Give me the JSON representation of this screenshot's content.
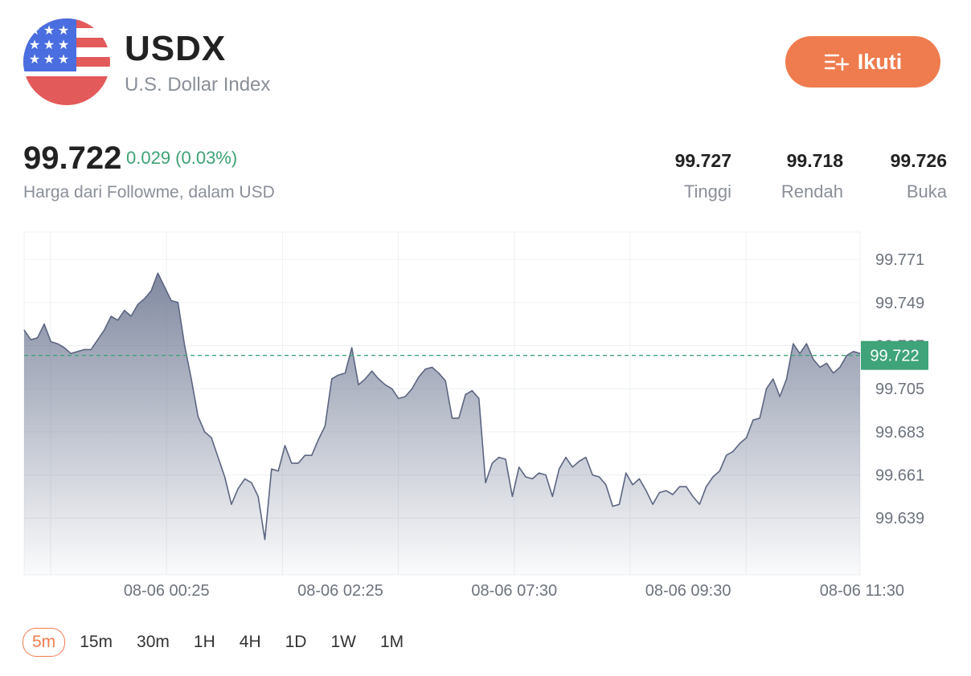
{
  "header": {
    "symbol": "USDX",
    "name": "U.S. Dollar Index",
    "follow_label": "Ikuti",
    "flag_icon": "us-flag-icon",
    "follow_icon": "add-to-list-icon"
  },
  "quote": {
    "price": "99.722",
    "change": "0.029 (0.03%)",
    "note": "Harga dari Followme, dalam USD",
    "high_value": "99.727",
    "high_label": "Tinggi",
    "low_value": "99.718",
    "low_label": "Rendah",
    "open_value": "99.726",
    "open_label": "Buka"
  },
  "colors": {
    "accent": "#ef7c4e",
    "positive": "#3ea173",
    "price_tag": "#3fa47a",
    "line": "#5c6680"
  },
  "chart_data": {
    "type": "area",
    "current_price_label": "99.722",
    "current_value": 99.722,
    "y_ticks": [
      99.771,
      99.749,
      99.727,
      99.705,
      99.683,
      99.661,
      99.639
    ],
    "y_tick_labels": [
      "99.771",
      "99.749",
      "99.727",
      "99.705",
      "99.683",
      "99.661",
      "99.639"
    ],
    "ylim": [
      99.61,
      99.785
    ],
    "x_tick_labels": [
      "08-06 00:25",
      "08-06 02:25",
      "08-06 07:30",
      "08-06 09:30",
      "08-06 11:30"
    ],
    "grid": true,
    "values": [
      99.735,
      99.73,
      99.731,
      99.738,
      99.729,
      99.728,
      99.726,
      99.723,
      99.724,
      99.725,
      99.725,
      99.73,
      99.735,
      99.742,
      99.74,
      99.745,
      99.742,
      99.748,
      99.751,
      99.755,
      99.764,
      99.757,
      99.75,
      99.749,
      99.727,
      99.71,
      99.691,
      99.683,
      99.68,
      99.67,
      99.66,
      99.646,
      99.654,
      99.659,
      99.657,
      99.65,
      99.628,
      99.664,
      99.663,
      99.676,
      99.667,
      99.667,
      99.671,
      99.671,
      99.679,
      99.686,
      99.71,
      99.712,
      99.713,
      99.726,
      99.707,
      99.71,
      99.714,
      99.71,
      99.707,
      99.705,
      99.7,
      99.701,
      99.705,
      99.711,
      99.715,
      99.716,
      99.713,
      99.709,
      99.69,
      99.69,
      99.702,
      99.704,
      99.7,
      99.657,
      99.667,
      99.67,
      99.669,
      99.65,
      99.665,
      99.66,
      99.659,
      99.662,
      99.661,
      99.65,
      99.664,
      99.67,
      99.665,
      99.668,
      99.67,
      99.661,
      99.66,
      99.656,
      99.645,
      99.646,
      99.662,
      99.656,
      99.659,
      99.653,
      99.646,
      99.652,
      99.653,
      99.651,
      99.655,
      99.655,
      99.65,
      99.646,
      99.655,
      99.66,
      99.663,
      99.671,
      99.673,
      99.677,
      99.68,
      99.689,
      99.69,
      99.705,
      99.71,
      99.701,
      99.71,
      99.728,
      99.723,
      99.728,
      99.72,
      99.716,
      99.718,
      99.713,
      99.716,
      99.722,
      99.724,
      99.723
    ]
  },
  "timeframes": [
    "5m",
    "15m",
    "30m",
    "1H",
    "4H",
    "1D",
    "1W",
    "1M"
  ],
  "active_timeframe": "5m"
}
